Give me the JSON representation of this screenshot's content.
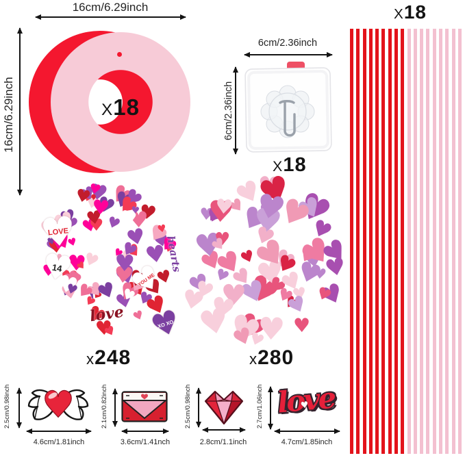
{
  "rings": {
    "width_label": "16cm/6.29inch",
    "height_label": "16cm/6.29inch",
    "count_prefix": "X",
    "count": "18",
    "red_color": "#f4172f",
    "pink_color": "#f7cbd7"
  },
  "hook": {
    "width_label": "6cm/2.36inch",
    "height_label": "6cm/2.36inch",
    "count_prefix": "X",
    "count": "18"
  },
  "stripes": {
    "count_prefix": "X",
    "count": "18",
    "red_count": 9,
    "pink_count": 9,
    "red_color": "#e3131b",
    "pink_color": "#f3c0d0"
  },
  "pile_small_stickers": {
    "count_prefix": "x",
    "count": "248",
    "palette": [
      "#e02433",
      "#f43b55",
      "#ef6f97",
      "#f6a8c0",
      "#fad0da",
      "#7b3fa0",
      "#9a4fb5",
      "#ffffff",
      "#c21c2c",
      "#f09"
    ],
    "decals": [
      "LOVE",
      "14",
      "YOU ME",
      "love",
      "XO XO",
      "hearts"
    ]
  },
  "pile_glitter_hearts": {
    "count_prefix": "x",
    "count": "280",
    "palette": [
      "#f2b0c9",
      "#f8cfdc",
      "#bb85cc",
      "#c9a0d8",
      "#ffffff",
      "#d92345",
      "#ef7ba2",
      "#f09ab5",
      "#a84fb0",
      "#e8547c"
    ]
  },
  "bottom_items": [
    {
      "id": "winged-heart",
      "height_label": "2.5cm/0.98inch",
      "width_label": "4.6cm/1.81inch"
    },
    {
      "id": "envelope",
      "height_label": "2.1cm/0.82inch",
      "width_label": "3.6cm/1.41nch"
    },
    {
      "id": "diamond-heart",
      "height_label": "2.5cm/0.98inch",
      "width_label": "2.8cm/1.1inch"
    },
    {
      "id": "love-script",
      "height_label": "2.7cm/1.06inch",
      "width_label": "4.7cm/1.85inch",
      "text": "love"
    }
  ],
  "colors": {
    "love_red": "#e5203a"
  }
}
